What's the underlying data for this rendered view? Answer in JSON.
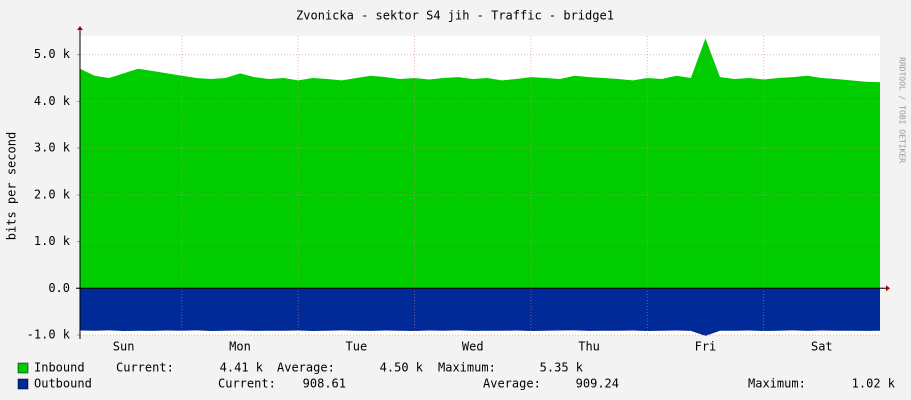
{
  "chart_data": {
    "type": "area",
    "title": "Zvonicka - sektor S4 jih - Traffic - bridge1",
    "y_label": "bits per second",
    "watermark": "RRDTOOL / TOBI OETIKER",
    "categories": [
      null,
      null,
      null,
      "Sun",
      null,
      null,
      null,
      null,
      null,
      null,
      null,
      "Mon",
      null,
      null,
      null,
      null,
      null,
      null,
      null,
      "Tue",
      null,
      null,
      null,
      null,
      null,
      null,
      null,
      "Wed",
      null,
      null,
      null,
      null,
      null,
      null,
      null,
      "Thu",
      null,
      null,
      null,
      null,
      null,
      null,
      null,
      "Fri",
      null,
      null,
      null,
      null,
      null,
      null,
      null,
      "Sat",
      null,
      null,
      null,
      null
    ],
    "series": [
      {
        "name": "Inbound",
        "color": "#00cc00",
        "values": [
          4700,
          4550,
          4500,
          4600,
          4700,
          4650,
          4600,
          4550,
          4500,
          4480,
          4500,
          4600,
          4520,
          4480,
          4500,
          4450,
          4500,
          4480,
          4450,
          4500,
          4550,
          4520,
          4480,
          4500,
          4470,
          4500,
          4520,
          4480,
          4500,
          4450,
          4480,
          4520,
          4500,
          4480,
          4550,
          4520,
          4500,
          4480,
          4450,
          4500,
          4480,
          4550,
          4500,
          5350,
          4520,
          4480,
          4500,
          4470,
          4500,
          4520,
          4550,
          4500,
          4480,
          4450,
          4420,
          4410
        ],
        "stats": [
          {
            "label": "Current:",
            "value": "4.41 k"
          },
          {
            "label": "Average:",
            "value": "4.50 k"
          },
          {
            "label": "Maximum:",
            "value": "5.35 k"
          }
        ]
      },
      {
        "name": "Outbound",
        "color": "#002a97",
        "values": [
          -905,
          -910,
          -900,
          -915,
          -908,
          -912,
          -905,
          -910,
          -900,
          -915,
          -910,
          -905,
          -912,
          -908,
          -910,
          -905,
          -915,
          -910,
          -900,
          -908,
          -912,
          -905,
          -910,
          -915,
          -905,
          -910,
          -900,
          -912,
          -908,
          -910,
          -905,
          -915,
          -910,
          -905,
          -900,
          -912,
          -908,
          -910,
          -905,
          -915,
          -910,
          -905,
          -912,
          -1020,
          -908,
          -910,
          -905,
          -915,
          -910,
          -900,
          -912,
          -905,
          -910,
          -908,
          -912,
          -909
        ],
        "stats": [
          {
            "label": "Current:",
            "value": "908.61"
          },
          {
            "label": "Average:",
            "value": "909.24"
          },
          {
            "label": "Maximum:",
            "value": "1.02 k"
          }
        ]
      }
    ],
    "ylim": [
      -1000,
      5400
    ],
    "yticks": [
      {
        "value": -1000,
        "label": "-1.0 k"
      },
      {
        "value": 0,
        "label": "0.0"
      },
      {
        "value": 1000,
        "label": "1.0 k"
      },
      {
        "value": 2000,
        "label": "2.0 k"
      },
      {
        "value": 3000,
        "label": "3.0 k"
      },
      {
        "value": 4000,
        "label": "4.0 k"
      },
      {
        "value": 5000,
        "label": "5.0 k"
      }
    ],
    "grid": true
  }
}
